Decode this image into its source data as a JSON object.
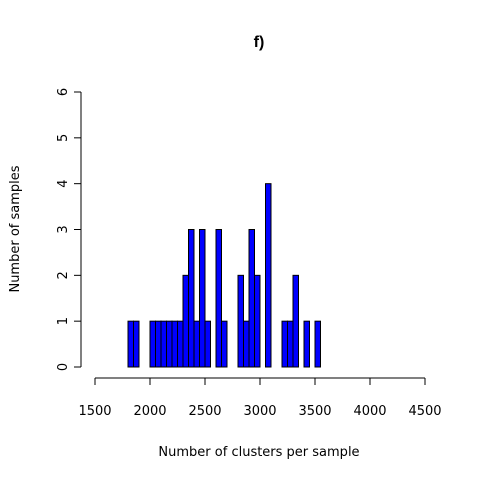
{
  "chart_data": {
    "type": "bar",
    "title": "f)",
    "xlabel": "Number of clusters per sample",
    "ylabel": "Number of samples",
    "xlim": [
      1500,
      4500
    ],
    "ylim": [
      0,
      6
    ],
    "xticks": [
      "1500",
      "2000",
      "2500",
      "3000",
      "3500",
      "4000",
      "4500"
    ],
    "yticks": [
      "0",
      "1",
      "2",
      "3",
      "4",
      "5",
      "6"
    ],
    "bin_width": 50,
    "bar_color": "#0000ff",
    "bins": [
      {
        "x": 1800,
        "count": 1
      },
      {
        "x": 1850,
        "count": 1
      },
      {
        "x": 2000,
        "count": 1
      },
      {
        "x": 2050,
        "count": 1
      },
      {
        "x": 2100,
        "count": 1
      },
      {
        "x": 2150,
        "count": 1
      },
      {
        "x": 2200,
        "count": 1
      },
      {
        "x": 2250,
        "count": 1
      },
      {
        "x": 2300,
        "count": 2
      },
      {
        "x": 2350,
        "count": 3
      },
      {
        "x": 2400,
        "count": 1
      },
      {
        "x": 2450,
        "count": 3
      },
      {
        "x": 2500,
        "count": 1
      },
      {
        "x": 2600,
        "count": 3
      },
      {
        "x": 2650,
        "count": 1
      },
      {
        "x": 2800,
        "count": 2
      },
      {
        "x": 2850,
        "count": 1
      },
      {
        "x": 2900,
        "count": 3
      },
      {
        "x": 2950,
        "count": 2
      },
      {
        "x": 3050,
        "count": 4
      },
      {
        "x": 3200,
        "count": 1
      },
      {
        "x": 3250,
        "count": 1
      },
      {
        "x": 3300,
        "count": 2
      },
      {
        "x": 3400,
        "count": 1
      },
      {
        "x": 3500,
        "count": 1
      }
    ]
  }
}
